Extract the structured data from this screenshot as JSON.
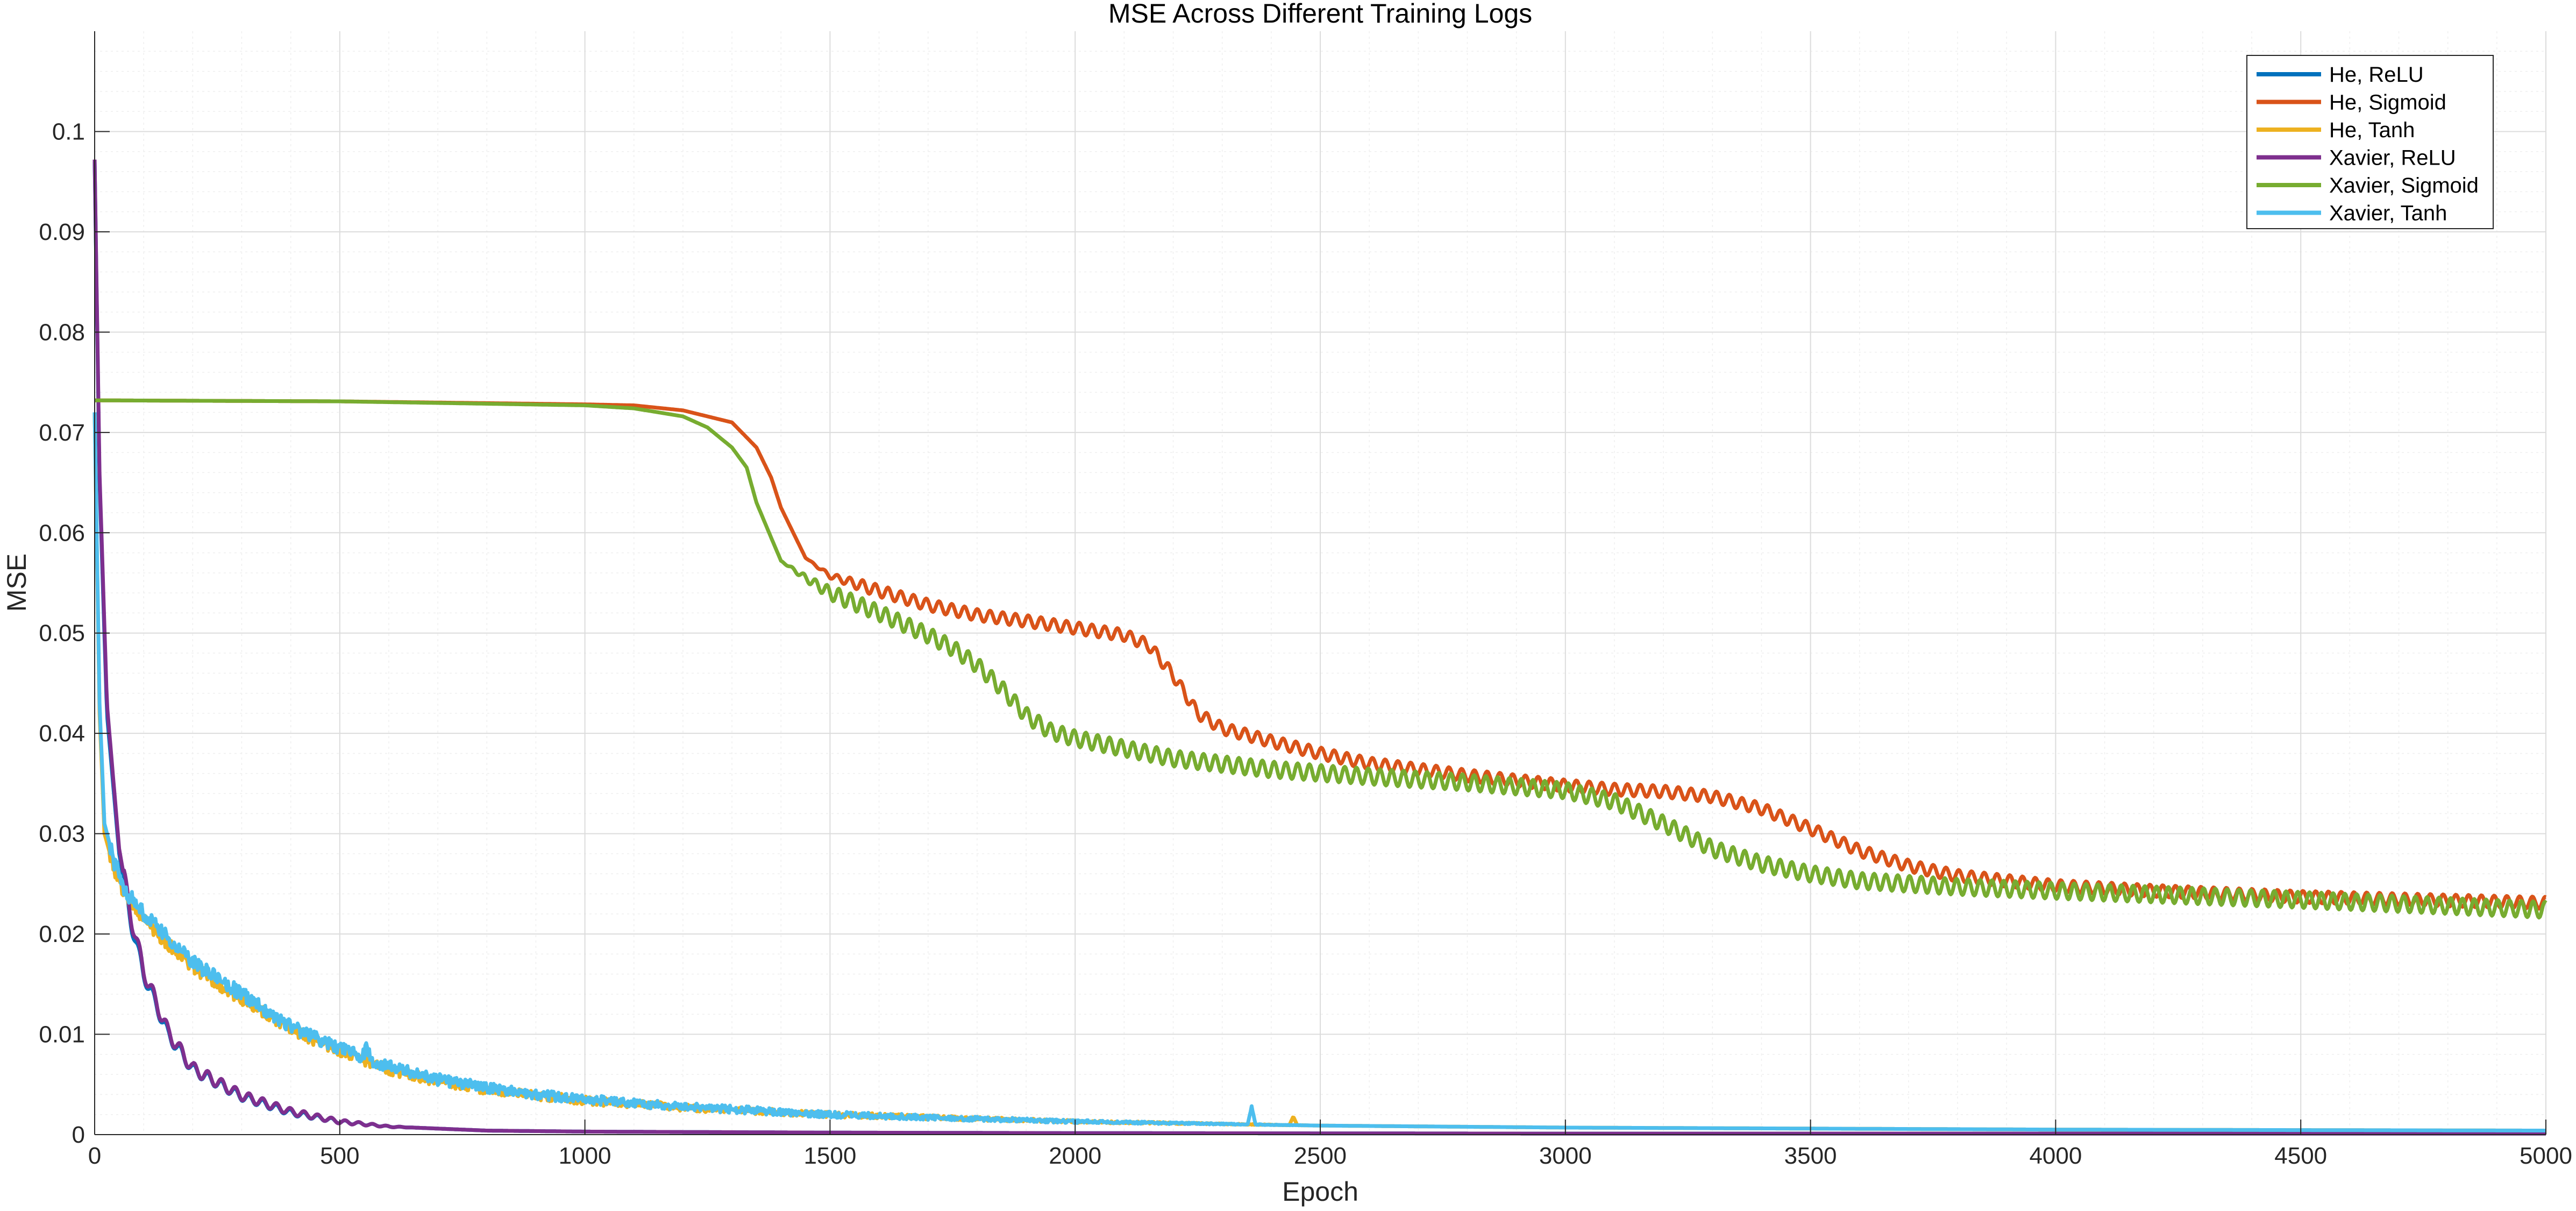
{
  "chart_data": {
    "type": "line",
    "title": "MSE Across Different Training Logs",
    "xlabel": "Epoch",
    "ylabel": "MSE",
    "xlim": [
      0,
      5000
    ],
    "ylim": [
      0,
      0.11
    ],
    "xticks": [
      0,
      500,
      1000,
      1500,
      2000,
      2500,
      3000,
      3500,
      4000,
      4500,
      5000
    ],
    "yticks": [
      0,
      0.01,
      0.02,
      0.03,
      0.04,
      0.05,
      0.06,
      0.07,
      0.08,
      0.09,
      0.1
    ],
    "ytick_labels": [
      "0",
      "0.01",
      "0.02",
      "0.03",
      "0.04",
      "0.05",
      "0.06",
      "0.07",
      "0.08",
      "0.09",
      "0.1"
    ],
    "grid": true,
    "minor_grid": true,
    "legend_position": "top-right",
    "series": [
      {
        "name": "He, ReLU",
        "color": "#0072BD",
        "x": [
          0,
          10,
          25,
          50,
          75,
          100,
          150,
          200,
          300,
          400,
          500,
          600,
          800,
          1000,
          1500,
          2000,
          3000,
          4000,
          5000
        ],
        "y": [
          0.097,
          0.065,
          0.042,
          0.028,
          0.021,
          0.016,
          0.01,
          0.0065,
          0.0038,
          0.0022,
          0.0013,
          0.0008,
          0.0004,
          0.0003,
          0.0002,
          0.00015,
          0.0001,
          0.0001,
          0.0001
        ],
        "oscillation": {
          "amplitude": 0.0008,
          "period": 28,
          "decay_until": 650
        }
      },
      {
        "name": "He, Sigmoid",
        "color": "#D95319",
        "x": [
          0,
          500,
          1000,
          1100,
          1200,
          1300,
          1350,
          1380,
          1400,
          1450,
          1500,
          1600,
          1700,
          1800,
          1900,
          2000,
          2100,
          2150,
          2200,
          2250,
          2300,
          2400,
          2500,
          2600,
          2800,
          3000,
          3100,
          3200,
          3300,
          3400,
          3500,
          3600,
          3700,
          3800,
          4000,
          4200,
          4500,
          5000
        ],
        "y": [
          0.0732,
          0.0731,
          0.0728,
          0.0727,
          0.0722,
          0.071,
          0.0685,
          0.0655,
          0.0625,
          0.0575,
          0.0557,
          0.0542,
          0.0528,
          0.0518,
          0.0512,
          0.0505,
          0.0498,
          0.0488,
          0.0458,
          0.042,
          0.0405,
          0.0392,
          0.038,
          0.037,
          0.0358,
          0.0348,
          0.0344,
          0.0342,
          0.0337,
          0.0325,
          0.0305,
          0.0283,
          0.0268,
          0.0258,
          0.0248,
          0.0243,
          0.0237,
          0.0231
        ],
        "oscillation": {
          "amplitude": 0.0006,
          "period": 26,
          "start": 1450
        }
      },
      {
        "name": "He, Tanh",
        "color": "#EDB120",
        "x": [
          0,
          10,
          20,
          40,
          60,
          100,
          150,
          200,
          300,
          400,
          500,
          600,
          700,
          800,
          900,
          1000,
          1200,
          1500,
          2000,
          2500,
          3000,
          4000,
          5000
        ],
        "y": [
          0.072,
          0.042,
          0.03,
          0.0265,
          0.024,
          0.0215,
          0.019,
          0.0167,
          0.0135,
          0.0105,
          0.0083,
          0.0065,
          0.0053,
          0.0045,
          0.0039,
          0.0034,
          0.0027,
          0.002,
          0.0013,
          0.0009,
          0.0007,
          0.0005,
          0.0004
        ],
        "noise": {
          "amplitude": 0.0007,
          "until": 2500
        },
        "spikes": [
          {
            "x": 2445,
            "y": 0.0018
          }
        ]
      },
      {
        "name": "Xavier, ReLU",
        "color": "#7E2F8E",
        "x": [
          0,
          10,
          25,
          50,
          75,
          100,
          150,
          200,
          300,
          400,
          500,
          600,
          800,
          1000,
          1500,
          2000,
          3000,
          4000,
          5000
        ],
        "y": [
          0.0972,
          0.066,
          0.043,
          0.0285,
          0.0215,
          0.0163,
          0.0102,
          0.0066,
          0.0039,
          0.0023,
          0.0013,
          0.0008,
          0.0004,
          0.0003,
          0.0002,
          0.00015,
          0.0001,
          0.0001,
          0.0001
        ],
        "oscillation": {
          "amplitude": 0.0009,
          "period": 28,
          "decay_until": 650
        }
      },
      {
        "name": "Xavier, Sigmoid",
        "color": "#77AC30",
        "x": [
          0,
          500,
          1000,
          1100,
          1200,
          1250,
          1300,
          1330,
          1350,
          1380,
          1400,
          1450,
          1500,
          1600,
          1700,
          1750,
          1800,
          1850,
          1900,
          1950,
          2000,
          2100,
          2200,
          2400,
          2600,
          2800,
          2900,
          3000,
          3100,
          3200,
          3300,
          3400,
          3500,
          3600,
          3800,
          4000,
          4500,
          5000
        ],
        "y": [
          0.0732,
          0.0731,
          0.0727,
          0.0724,
          0.0716,
          0.0705,
          0.0685,
          0.0665,
          0.063,
          0.0595,
          0.0572,
          0.0555,
          0.054,
          0.052,
          0.0498,
          0.0485,
          0.0468,
          0.0445,
          0.0418,
          0.0402,
          0.0395,
          0.0385,
          0.0375,
          0.0364,
          0.0357,
          0.0351,
          0.0347,
          0.0343,
          0.0332,
          0.031,
          0.0285,
          0.027,
          0.026,
          0.0253,
          0.0247,
          0.0243,
          0.0234,
          0.0224
        ],
        "oscillation": {
          "amplitude": 0.0008,
          "period": 24,
          "start": 1400
        }
      },
      {
        "name": "Xavier, Tanh",
        "color": "#4DBEEE",
        "x": [
          0,
          10,
          20,
          40,
          60,
          100,
          150,
          200,
          300,
          400,
          500,
          600,
          700,
          800,
          900,
          1000,
          1200,
          1500,
          2000,
          2500,
          3000,
          4000,
          5000
        ],
        "y": [
          0.072,
          0.043,
          0.031,
          0.0272,
          0.0245,
          0.022,
          0.0195,
          0.0172,
          0.014,
          0.0108,
          0.0086,
          0.0068,
          0.0055,
          0.0047,
          0.004,
          0.0035,
          0.0028,
          0.002,
          0.0013,
          0.0009,
          0.0007,
          0.0005,
          0.0004
        ],
        "noise": {
          "amplitude": 0.0008,
          "until": 2500
        },
        "spikes": [
          {
            "x": 555,
            "y": 0.0088
          },
          {
            "x": 2360,
            "y": 0.0028
          }
        ]
      }
    ]
  }
}
